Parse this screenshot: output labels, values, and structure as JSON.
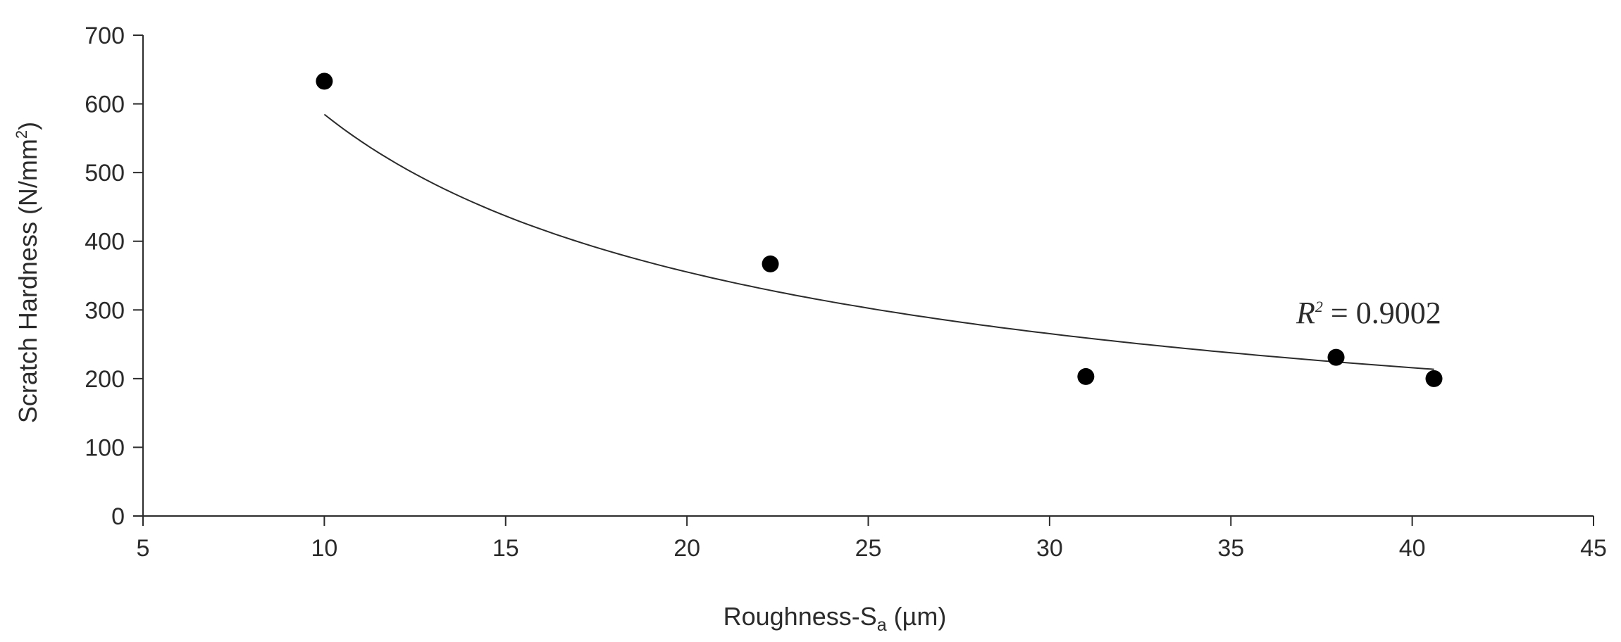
{
  "chart_data": {
    "type": "scatter",
    "title": "",
    "xlabel": {
      "main": "Roughness-S",
      "subscript": "a",
      "suffix": " (µm)"
    },
    "ylabel": {
      "main": "Scratch Hardness (N/mm",
      "superscript": "2",
      "suffix": ")"
    },
    "xlim": [
      5,
      45
    ],
    "ylim": [
      0,
      700
    ],
    "xticks": [
      "5",
      "10",
      "15",
      "20",
      "25",
      "30",
      "35",
      "40",
      "45"
    ],
    "yticks": [
      "0",
      "100",
      "200",
      "300",
      "400",
      "500",
      "600",
      "700"
    ],
    "grid": false,
    "legend": "none",
    "points": {
      "x": [
        10.0,
        22.3,
        31.0,
        37.9,
        40.6
      ],
      "y": [
        633,
        367,
        203,
        231,
        200
      ]
    },
    "trendline": {
      "type": "power",
      "coefficient": 3060,
      "exponent": -0.7188,
      "x_range": [
        10.0,
        40.6
      ]
    },
    "annotation": {
      "r_label": "R",
      "r_superscript": "2",
      "value_text": " = 0.9002",
      "x": 38.8,
      "y": 281
    },
    "colors": {
      "marker": "#000000",
      "line": "#2b2b2b",
      "axis": "#2b2b2b"
    }
  }
}
